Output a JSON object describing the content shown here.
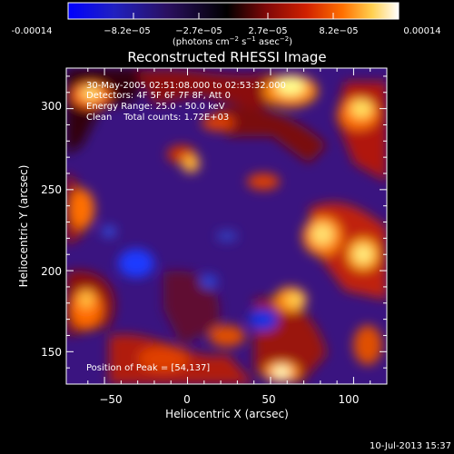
{
  "colorbar": {
    "tick_labels": [
      "-0.00014",
      "−8.2e−05",
      "−2.7e−05",
      "2.7e−05",
      "8.2e−05",
      "0.00014"
    ],
    "unit_label_main": "(photons cm",
    "unit_exp1": "−2",
    "unit_mid": " s",
    "unit_exp2": "−1",
    "unit_end": " asec",
    "unit_exp3": "−2",
    "unit_close": ")",
    "colors": [
      "#0000ff",
      "#2a2ab0",
      "#3a1a70",
      "#000000",
      "#7a0a0a",
      "#c81a00",
      "#ff6a00",
      "#ffd060",
      "#ffffff"
    ]
  },
  "chart_data": {
    "type": "heatmap",
    "title": "Reconstructed RHESSI Image",
    "xlabel": "Heliocentric X (arcsec)",
    "ylabel": "Heliocentric Y (arcsec)",
    "xlim": [
      -73,
      120
    ],
    "ylim": [
      130,
      325
    ],
    "x_ticks": [
      -50,
      0,
      50,
      100
    ],
    "y_ticks": [
      150,
      200,
      250,
      300
    ],
    "x_tick_labels": [
      "−50",
      "0",
      "50",
      "100"
    ],
    "y_tick_labels": [
      "150",
      "200",
      "250",
      "300"
    ],
    "info_lines": [
      "30-May-2005 02:51:08.000 to 02:53:32.000",
      "Detectors: 4F 5F 6F 7F 8F, Att 0",
      "Energy Range: 25.0 - 50.0 keV",
      "Clean    Total counts: 1.72E+03"
    ],
    "peak_label": "Position of Peak = [54,137]",
    "peak": [
      54,
      137
    ]
  },
  "footer": {
    "timestamp": "10-Jul-2013 15:37"
  }
}
